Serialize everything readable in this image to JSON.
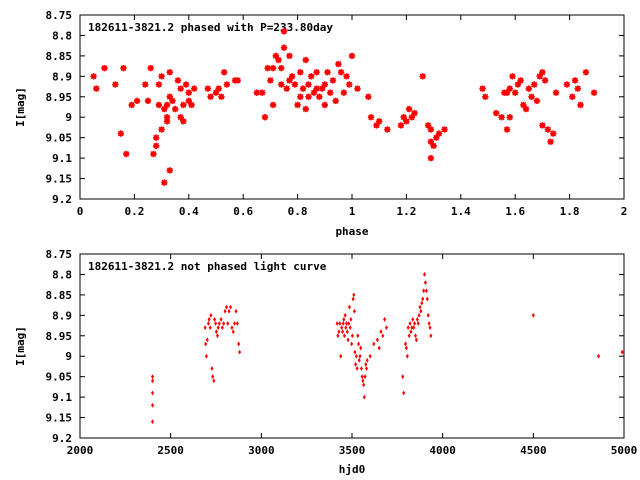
{
  "chart_data": [
    {
      "type": "scatter",
      "title": "182611-3821.2 phased with P=233.80day",
      "xlabel": "phase",
      "ylabel": "I[mag]",
      "xlim": [
        0,
        2
      ],
      "ylim": [
        8.75,
        9.2
      ],
      "y_inverted": true,
      "grid": false,
      "marker_color": "#ff0000",
      "xticks": [
        "0",
        "0.2",
        "0.4",
        "0.6",
        "0.8",
        "1",
        "1.2",
        "1.4",
        "1.6",
        "1.8",
        "2"
      ],
      "xtick_values": [
        0,
        0.2,
        0.4,
        0.6,
        0.8,
        1.0,
        1.2,
        1.4,
        1.6,
        1.8,
        2.0
      ],
      "yticks": [
        "8.75",
        "8.8",
        "8.85",
        "8.9",
        "8.95",
        "9",
        "9.05",
        "9.1",
        "9.15",
        "9.2"
      ],
      "ytick_values": [
        8.75,
        8.8,
        8.85,
        8.9,
        8.95,
        9.0,
        9.05,
        9.1,
        9.15,
        9.2
      ],
      "points": [
        [
          0.05,
          8.9
        ],
        [
          0.06,
          8.93
        ],
        [
          0.09,
          8.88
        ],
        [
          0.13,
          8.92
        ],
        [
          0.15,
          9.04
        ],
        [
          0.16,
          8.88
        ],
        [
          0.17,
          9.09
        ],
        [
          0.19,
          8.97
        ],
        [
          0.21,
          8.96
        ],
        [
          0.24,
          8.92
        ],
        [
          0.25,
          8.96
        ],
        [
          0.26,
          8.88
        ],
        [
          0.27,
          9.09
        ],
        [
          0.28,
          9.05
        ],
        [
          0.28,
          9.07
        ],
        [
          0.29,
          8.97
        ],
        [
          0.29,
          8.92
        ],
        [
          0.3,
          8.9
        ],
        [
          0.3,
          9.03
        ],
        [
          0.31,
          8.98
        ],
        [
          0.31,
          9.16
        ],
        [
          0.32,
          8.97
        ],
        [
          0.32,
          9.0
        ],
        [
          0.32,
          9.01
        ],
        [
          0.33,
          8.95
        ],
        [
          0.33,
          8.89
        ],
        [
          0.33,
          9.13
        ],
        [
          0.34,
          8.96
        ],
        [
          0.35,
          8.98
        ],
        [
          0.36,
          8.91
        ],
        [
          0.37,
          8.93
        ],
        [
          0.37,
          9.0
        ],
        [
          0.38,
          8.97
        ],
        [
          0.38,
          9.01
        ],
        [
          0.39,
          8.92
        ],
        [
          0.4,
          8.94
        ],
        [
          0.4,
          8.96
        ],
        [
          0.41,
          8.97
        ],
        [
          0.42,
          8.93
        ],
        [
          0.47,
          8.93
        ],
        [
          0.48,
          8.95
        ],
        [
          0.5,
          8.94
        ],
        [
          0.51,
          8.93
        ],
        [
          0.52,
          8.95
        ],
        [
          0.53,
          8.89
        ],
        [
          0.54,
          8.92
        ],
        [
          0.57,
          8.91
        ],
        [
          0.58,
          8.91
        ],
        [
          0.65,
          8.94
        ],
        [
          0.67,
          8.94
        ],
        [
          0.68,
          9.0
        ],
        [
          0.69,
          8.88
        ],
        [
          0.7,
          8.91
        ],
        [
          0.71,
          8.88
        ],
        [
          0.71,
          8.97
        ],
        [
          0.72,
          8.85
        ],
        [
          0.73,
          8.86
        ],
        [
          0.74,
          8.88
        ],
        [
          0.74,
          8.92
        ],
        [
          0.75,
          8.79
        ],
        [
          0.75,
          8.83
        ],
        [
          0.76,
          8.93
        ],
        [
          0.77,
          8.85
        ],
        [
          0.77,
          8.91
        ],
        [
          0.78,
          8.9
        ],
        [
          0.79,
          8.92
        ],
        [
          0.8,
          8.97
        ],
        [
          0.81,
          8.95
        ],
        [
          0.81,
          8.89
        ],
        [
          0.82,
          8.93
        ],
        [
          0.83,
          8.86
        ],
        [
          0.83,
          8.98
        ],
        [
          0.84,
          8.92
        ],
        [
          0.84,
          8.95
        ],
        [
          0.85,
          8.9
        ],
        [
          0.86,
          8.94
        ],
        [
          0.87,
          8.93
        ],
        [
          0.87,
          8.89
        ],
        [
          0.88,
          8.95
        ],
        [
          0.89,
          8.93
        ],
        [
          0.9,
          8.92
        ],
        [
          0.9,
          8.97
        ],
        [
          0.91,
          8.89
        ],
        [
          0.92,
          8.94
        ],
        [
          0.93,
          8.91
        ],
        [
          0.94,
          8.96
        ],
        [
          0.95,
          8.87
        ],
        [
          0.96,
          8.89
        ],
        [
          0.97,
          8.94
        ],
        [
          0.98,
          8.9
        ],
        [
          0.99,
          8.92
        ],
        [
          1.0,
          8.85
        ],
        [
          1.02,
          8.93
        ],
        [
          1.06,
          8.95
        ],
        [
          1.07,
          9.0
        ],
        [
          1.09,
          9.02
        ],
        [
          1.1,
          9.01
        ],
        [
          1.13,
          9.03
        ],
        [
          1.18,
          9.02
        ],
        [
          1.19,
          9.0
        ],
        [
          1.2,
          9.01
        ],
        [
          1.21,
          8.98
        ],
        [
          1.22,
          9.0
        ],
        [
          1.23,
          8.99
        ],
        [
          1.26,
          8.9
        ],
        [
          1.28,
          9.02
        ],
        [
          1.29,
          9.03
        ],
        [
          1.29,
          9.06
        ],
        [
          1.29,
          9.1
        ],
        [
          1.3,
          9.07
        ],
        [
          1.31,
          9.05
        ],
        [
          1.32,
          9.04
        ],
        [
          1.34,
          9.03
        ],
        [
          1.48,
          8.93
        ],
        [
          1.49,
          8.95
        ],
        [
          1.53,
          8.99
        ],
        [
          1.55,
          9.0
        ],
        [
          1.56,
          8.94
        ],
        [
          1.57,
          9.03
        ],
        [
          1.57,
          8.94
        ],
        [
          1.58,
          9.0
        ],
        [
          1.58,
          8.93
        ],
        [
          1.59,
          8.9
        ],
        [
          1.6,
          8.94
        ],
        [
          1.61,
          8.92
        ],
        [
          1.62,
          8.91
        ],
        [
          1.63,
          8.97
        ],
        [
          1.64,
          8.98
        ],
        [
          1.65,
          8.93
        ],
        [
          1.66,
          8.95
        ],
        [
          1.67,
          8.92
        ],
        [
          1.68,
          8.96
        ],
        [
          1.69,
          8.9
        ],
        [
          1.7,
          8.89
        ],
        [
          1.7,
          9.02
        ],
        [
          1.71,
          8.91
        ],
        [
          1.72,
          9.03
        ],
        [
          1.73,
          9.06
        ],
        [
          1.74,
          9.04
        ],
        [
          1.75,
          8.94
        ],
        [
          1.79,
          8.92
        ],
        [
          1.81,
          8.95
        ],
        [
          1.82,
          8.91
        ],
        [
          1.83,
          8.93
        ],
        [
          1.84,
          8.97
        ],
        [
          1.86,
          8.89
        ],
        [
          1.89,
          8.94
        ]
      ]
    },
    {
      "type": "scatter",
      "title": "182611-3821.2 not phased light curve",
      "xlabel": "hjd0",
      "ylabel": "I[mag]",
      "xlim": [
        2000,
        5000
      ],
      "ylim": [
        8.75,
        9.2
      ],
      "y_inverted": true,
      "grid": false,
      "marker_color": "#ff0000",
      "xticks": [
        "2000",
        "2500",
        "3000",
        "3500",
        "4000",
        "4500",
        "5000"
      ],
      "xtick_values": [
        2000,
        2500,
        3000,
        3500,
        4000,
        4500,
        5000
      ],
      "yticks": [
        "8.75",
        "8.8",
        "8.85",
        "8.9",
        "8.95",
        "9",
        "9.05",
        "9.1",
        "9.15",
        "9.2"
      ],
      "ytick_values": [
        8.75,
        8.8,
        8.85,
        8.9,
        8.95,
        9.0,
        9.05,
        9.1,
        9.15,
        9.2
      ],
      "points": [
        [
          2400,
          9.05
        ],
        [
          2400,
          9.06
        ],
        [
          2400,
          9.09
        ],
        [
          2400,
          9.12
        ],
        [
          2400,
          9.16
        ],
        [
          2690,
          8.93
        ],
        [
          2693,
          8.97
        ],
        [
          2697,
          9.0
        ],
        [
          2702,
          8.96
        ],
        [
          2708,
          8.92
        ],
        [
          2712,
          8.91
        ],
        [
          2718,
          8.93
        ],
        [
          2722,
          8.9
        ],
        [
          2728,
          9.03
        ],
        [
          2732,
          9.05
        ],
        [
          2738,
          9.06
        ],
        [
          2742,
          8.91
        ],
        [
          2748,
          8.92
        ],
        [
          2752,
          8.94
        ],
        [
          2758,
          8.95
        ],
        [
          2762,
          8.93
        ],
        [
          2768,
          8.92
        ],
        [
          2778,
          8.91
        ],
        [
          2785,
          8.93
        ],
        [
          2792,
          8.92
        ],
        [
          2800,
          8.89
        ],
        [
          2808,
          8.88
        ],
        [
          2815,
          8.92
        ],
        [
          2822,
          8.89
        ],
        [
          2830,
          8.88
        ],
        [
          2838,
          8.93
        ],
        [
          2845,
          8.94
        ],
        [
          2852,
          8.92
        ],
        [
          2860,
          8.89
        ],
        [
          2868,
          8.92
        ],
        [
          2875,
          8.97
        ],
        [
          2880,
          8.99
        ],
        [
          3418,
          8.92
        ],
        [
          3422,
          8.95
        ],
        [
          3428,
          8.94
        ],
        [
          3433,
          8.92
        ],
        [
          3438,
          9.0
        ],
        [
          3443,
          8.93
        ],
        [
          3448,
          8.94
        ],
        [
          3452,
          8.92
        ],
        [
          3455,
          8.91
        ],
        [
          3458,
          8.95
        ],
        [
          3462,
          8.9
        ],
        [
          3466,
          8.93
        ],
        [
          3470,
          8.92
        ],
        [
          3474,
          8.94
        ],
        [
          3478,
          8.96
        ],
        [
          3482,
          8.92
        ],
        [
          3486,
          8.88
        ],
        [
          3490,
          8.93
        ],
        [
          3494,
          8.91
        ],
        [
          3498,
          8.97
        ],
        [
          3502,
          8.95
        ],
        [
          3506,
          8.86
        ],
        [
          3510,
          8.85
        ],
        [
          3513,
          8.89
        ],
        [
          3516,
          8.99
        ],
        [
          3520,
          9.02
        ],
        [
          3524,
          9.0
        ],
        [
          3528,
          9.03
        ],
        [
          3532,
          8.95
        ],
        [
          3536,
          8.97
        ],
        [
          3540,
          9.01
        ],
        [
          3544,
          9.0
        ],
        [
          3548,
          8.98
        ],
        [
          3552,
          9.03
        ],
        [
          3556,
          9.05
        ],
        [
          3560,
          9.06
        ],
        [
          3564,
          9.07
        ],
        [
          3568,
          9.1
        ],
        [
          3572,
          9.05
        ],
        [
          3576,
          9.02
        ],
        [
          3580,
          9.03
        ],
        [
          3584,
          9.01
        ],
        [
          3600,
          9.0
        ],
        [
          3620,
          8.97
        ],
        [
          3640,
          8.96
        ],
        [
          3650,
          8.98
        ],
        [
          3660,
          8.94
        ],
        [
          3670,
          8.95
        ],
        [
          3680,
          8.91
        ],
        [
          3690,
          8.93
        ],
        [
          3780,
          9.05
        ],
        [
          3785,
          9.09
        ],
        [
          3795,
          8.97
        ],
        [
          3800,
          8.98
        ],
        [
          3805,
          9.0
        ],
        [
          3810,
          8.93
        ],
        [
          3815,
          8.95
        ],
        [
          3820,
          8.92
        ],
        [
          3825,
          8.94
        ],
        [
          3830,
          8.93
        ],
        [
          3835,
          8.91
        ],
        [
          3840,
          8.93
        ],
        [
          3845,
          8.92
        ],
        [
          3850,
          8.95
        ],
        [
          3855,
          8.96
        ],
        [
          3860,
          8.91
        ],
        [
          3865,
          8.92
        ],
        [
          3870,
          8.9
        ],
        [
          3875,
          8.88
        ],
        [
          3880,
          8.89
        ],
        [
          3885,
          8.87
        ],
        [
          3890,
          8.86
        ],
        [
          3895,
          8.84
        ],
        [
          3900,
          8.8
        ],
        [
          3905,
          8.82
        ],
        [
          3910,
          8.84
        ],
        [
          3915,
          8.86
        ],
        [
          3920,
          8.9
        ],
        [
          3925,
          8.92
        ],
        [
          3930,
          8.93
        ],
        [
          3935,
          8.95
        ],
        [
          4500,
          8.9
        ],
        [
          4860,
          9.0
        ],
        [
          4990,
          8.99
        ]
      ]
    }
  ]
}
